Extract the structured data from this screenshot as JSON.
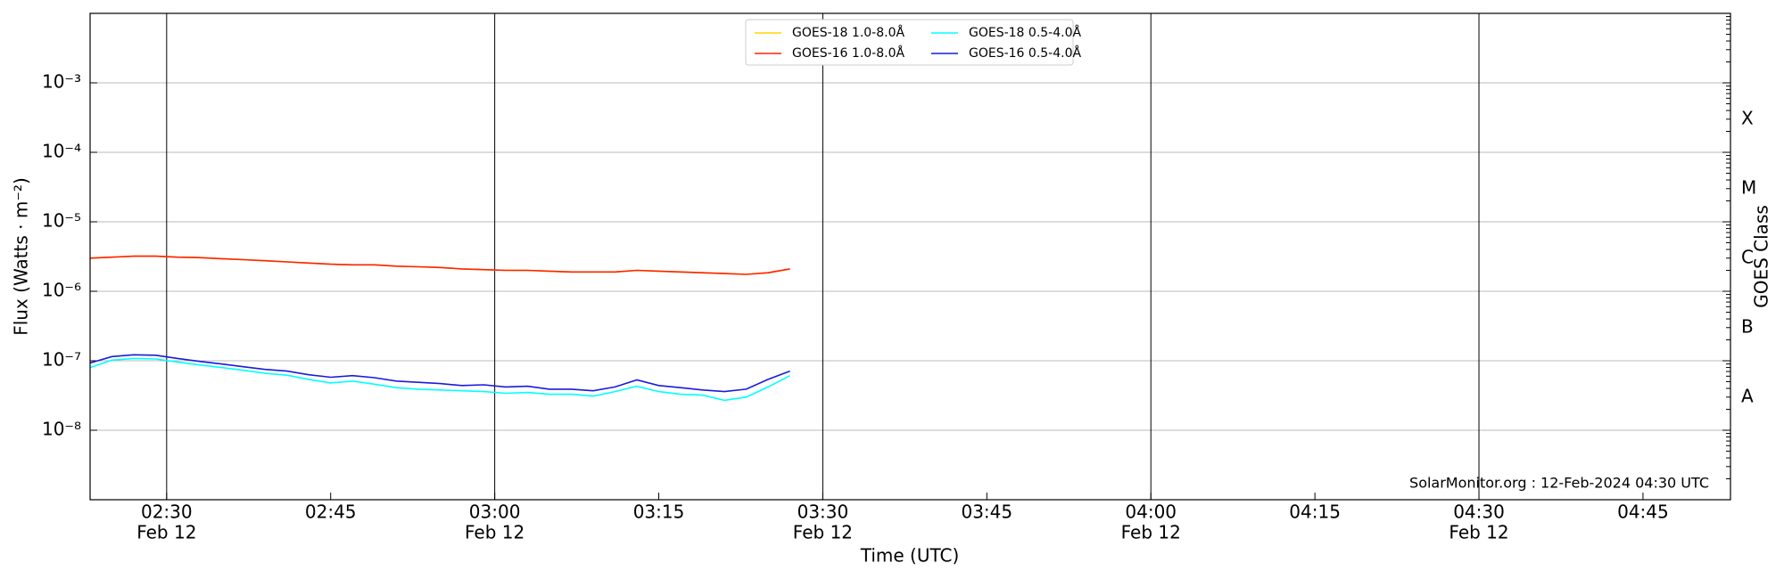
{
  "chart_data": {
    "type": "line",
    "log_y": true,
    "grid": true,
    "ylabel": "Flux (Watts · m⁻²)",
    "xlabel": "Time (UTC)",
    "y2label": "GOES Class",
    "annotation": "SolarMonitor.org : 12-Feb-2024 04:30 UTC",
    "legend": "upper center",
    "xlim": [
      "02:23",
      "04:53"
    ],
    "ylim": [
      1e-09,
      0.01
    ],
    "yticks": [
      {
        "value": 1e-08,
        "label": "10⁻⁸"
      },
      {
        "value": 1e-07,
        "label": "10⁻⁷"
      },
      {
        "value": 1e-06,
        "label": "10⁻⁶"
      },
      {
        "value": 1e-05,
        "label": "10⁻⁵"
      },
      {
        "value": 0.0001,
        "label": "10⁻⁴"
      },
      {
        "value": 0.001,
        "label": "10⁻³"
      }
    ],
    "xticks": [
      {
        "value": "02:30",
        "label": "02:30",
        "date": "Feb 12"
      },
      {
        "value": "02:45",
        "label": "02:45"
      },
      {
        "value": "03:00",
        "label": "03:00",
        "date": "Feb 12"
      },
      {
        "value": "03:15",
        "label": "03:15"
      },
      {
        "value": "03:30",
        "label": "03:30",
        "date": "Feb 12"
      },
      {
        "value": "03:45",
        "label": "03:45"
      },
      {
        "value": "04:00",
        "label": "04:00",
        "date": "Feb 12"
      },
      {
        "value": "04:15",
        "label": "04:15"
      },
      {
        "value": "04:30",
        "label": "04:30",
        "date": "Feb 12"
      },
      {
        "value": "04:45",
        "label": "04:45"
      }
    ],
    "goes_classes": [
      {
        "value": 0.0003,
        "label": "X"
      },
      {
        "value": 3e-05,
        "label": "M"
      },
      {
        "value": 3e-06,
        "label": "C"
      },
      {
        "value": 3e-07,
        "label": "B"
      },
      {
        "value": 3e-08,
        "label": "A"
      }
    ],
    "x": [
      "02:23",
      "02:25",
      "02:27",
      "02:29",
      "02:31",
      "02:33",
      "02:35",
      "02:37",
      "02:39",
      "02:41",
      "02:43",
      "02:45",
      "02:47",
      "02:49",
      "02:51",
      "02:53",
      "02:55",
      "02:57",
      "02:59",
      "03:01",
      "03:03",
      "03:05",
      "03:07",
      "03:09",
      "03:11",
      "03:13",
      "03:15",
      "03:17",
      "03:19",
      "03:21",
      "03:23",
      "03:25",
      "03:27"
    ],
    "series": [
      {
        "name": "GOES-18 1.0-8.0Å",
        "color": "#ffd700",
        "values": [
          3e-06,
          3.1e-06,
          3.2e-06,
          3.2e-06,
          3.1e-06,
          3.05e-06,
          2.95e-06,
          2.85e-06,
          2.75e-06,
          2.65e-06,
          2.55e-06,
          2.45e-06,
          2.4e-06,
          2.4e-06,
          2.3e-06,
          2.25e-06,
          2.2e-06,
          2.1e-06,
          2.05e-06,
          2e-06,
          2e-06,
          1.95e-06,
          1.9e-06,
          1.9e-06,
          1.9e-06,
          2e-06,
          1.95e-06,
          1.9e-06,
          1.85e-06,
          1.8e-06,
          1.75e-06,
          1.85e-06,
          2.1e-06
        ]
      },
      {
        "name": "GOES-16 1.0-8.0Å",
        "color": "#ff2200",
        "values": [
          3e-06,
          3.1e-06,
          3.2e-06,
          3.2e-06,
          3.1e-06,
          3.05e-06,
          2.95e-06,
          2.85e-06,
          2.75e-06,
          2.65e-06,
          2.55e-06,
          2.45e-06,
          2.4e-06,
          2.4e-06,
          2.3e-06,
          2.25e-06,
          2.2e-06,
          2.1e-06,
          2.05e-06,
          2e-06,
          2e-06,
          1.95e-06,
          1.9e-06,
          1.9e-06,
          1.9e-06,
          2e-06,
          1.95e-06,
          1.9e-06,
          1.85e-06,
          1.8e-06,
          1.75e-06,
          1.85e-06,
          2.1e-06
        ]
      },
      {
        "name": "GOES-18 0.5-4.0Å",
        "color": "#00ffff",
        "values": [
          8e-08,
          1.02e-07,
          1.08e-07,
          1.06e-07,
          9.6e-08,
          8.7e-08,
          8e-08,
          7.3e-08,
          6.6e-08,
          6.2e-08,
          5.4e-08,
          4.8e-08,
          5.1e-08,
          4.6e-08,
          4.1e-08,
          3.9e-08,
          3.8e-08,
          3.7e-08,
          3.6e-08,
          3.4e-08,
          3.5e-08,
          3.3e-08,
          3.3e-08,
          3.1e-08,
          3.6e-08,
          4.3e-08,
          3.6e-08,
          3.3e-08,
          3.2e-08,
          2.7e-08,
          3e-08,
          4.2e-08,
          6.1e-08
        ]
      },
      {
        "name": "GOES-16 0.5-4.0Å",
        "color": "#1a1adc",
        "values": [
          9.3e-08,
          1.15e-07,
          1.22e-07,
          1.2e-07,
          1.08e-07,
          9.8e-08,
          9e-08,
          8.2e-08,
          7.5e-08,
          7.1e-08,
          6.3e-08,
          5.8e-08,
          6.1e-08,
          5.7e-08,
          5.1e-08,
          4.9e-08,
          4.7e-08,
          4.4e-08,
          4.5e-08,
          4.2e-08,
          4.3e-08,
          3.9e-08,
          3.9e-08,
          3.7e-08,
          4.2e-08,
          5.3e-08,
          4.4e-08,
          4.1e-08,
          3.8e-08,
          3.6e-08,
          3.9e-08,
          5.4e-08,
          7.1e-08
        ]
      }
    ]
  }
}
